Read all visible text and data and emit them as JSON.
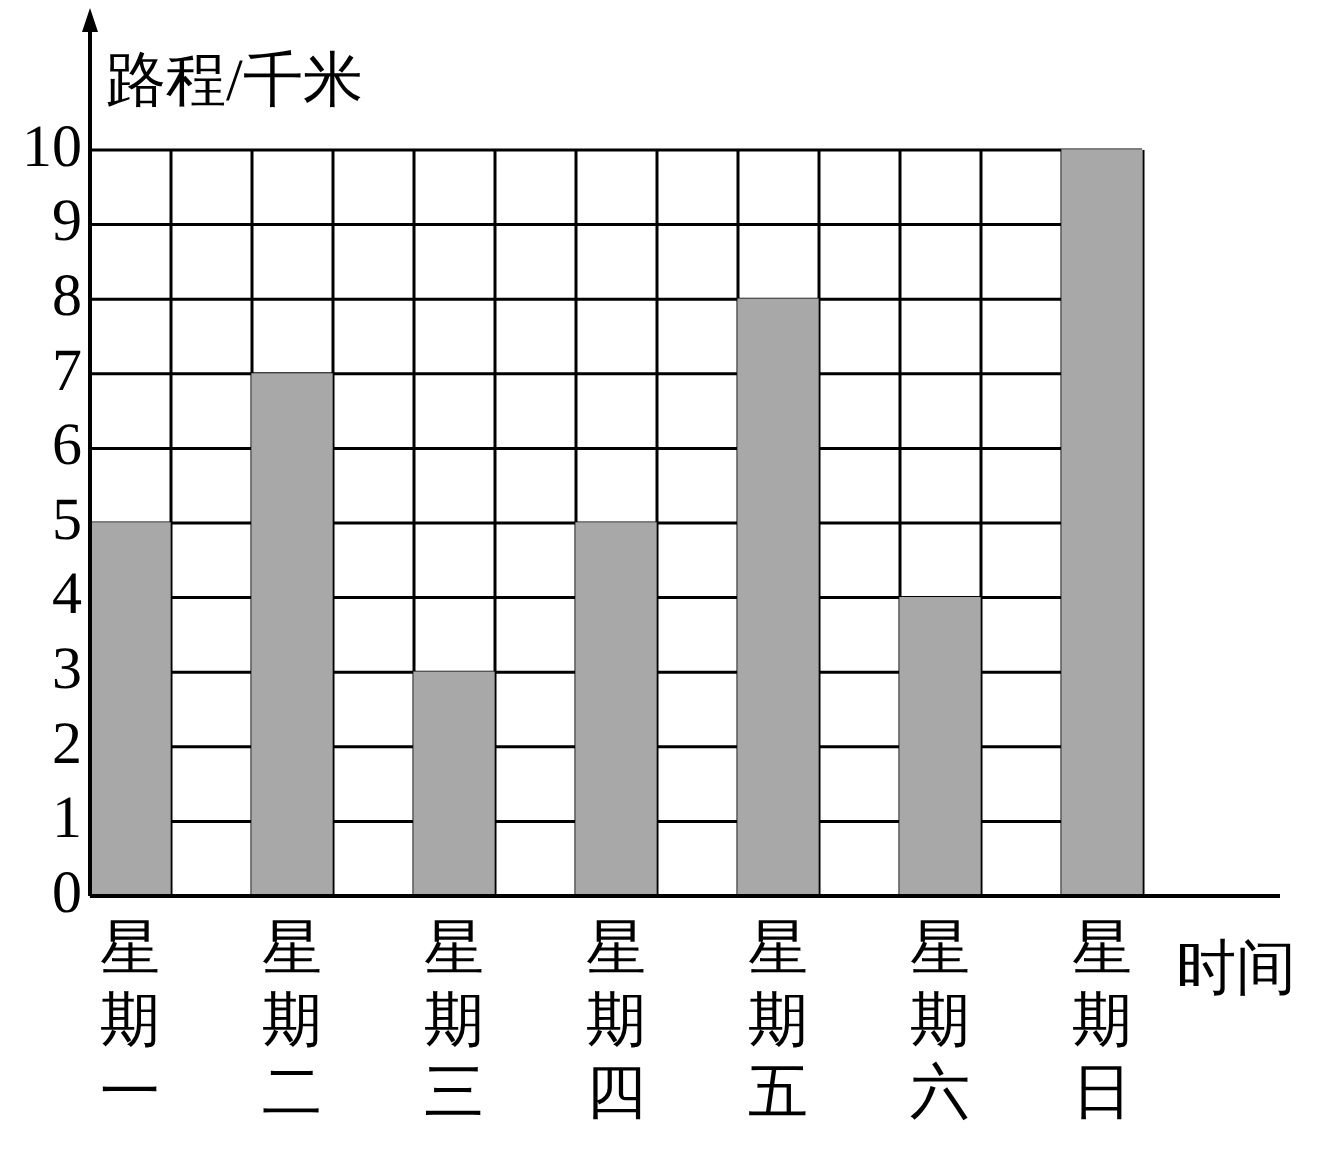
{
  "chart_data": {
    "type": "bar",
    "xlabel": "时间",
    "ylabel": "路程/千米",
    "categories": [
      "星期一",
      "星期二",
      "星期三",
      "星期四",
      "星期五",
      "星期六",
      "星期日"
    ],
    "values": [
      5,
      7,
      3,
      5,
      8,
      4,
      10
    ],
    "color": "#a8a8a8",
    "ylim": [
      0,
      10
    ],
    "yticks": [
      0,
      1,
      2,
      3,
      4,
      5,
      6,
      7,
      8,
      9,
      10
    ],
    "grid": true,
    "legend": false
  }
}
